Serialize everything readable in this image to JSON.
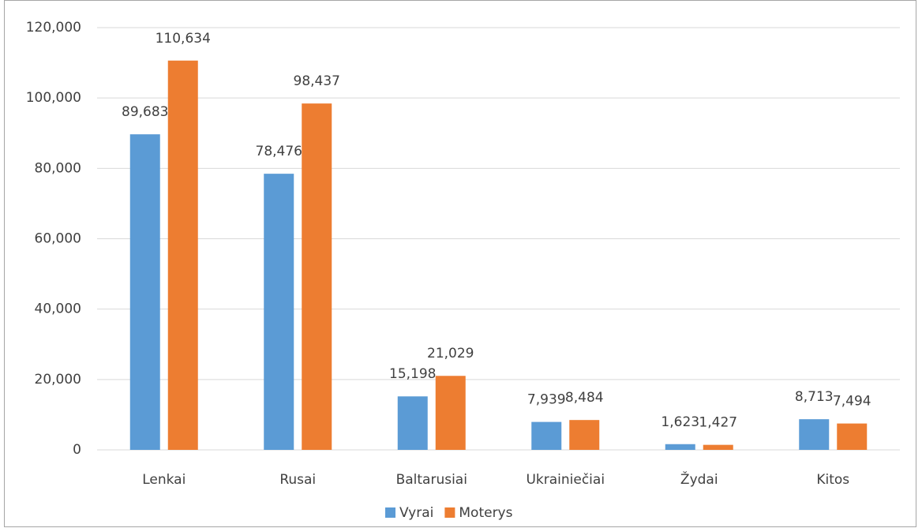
{
  "chart_data": {
    "type": "bar",
    "categories": [
      "Lenkai",
      "Rusai",
      "Baltarusiai",
      "Ukrainiečiai",
      "Žydai",
      "Kitos"
    ],
    "series": [
      {
        "name": "Vyrai",
        "color": "#5b9bd5",
        "values": [
          89683,
          78476,
          15198,
          7939,
          1623,
          8713
        ],
        "value_labels": [
          "89,683",
          "78,476",
          "15,198",
          "7,939",
          "1,623",
          "8,713"
        ]
      },
      {
        "name": "Moterys",
        "color": "#ed7d31",
        "values": [
          110634,
          98437,
          21029,
          8484,
          1427,
          7494
        ],
        "value_labels": [
          "110,634",
          "98,437",
          "21,029",
          "8,484",
          "1,427",
          "7,494"
        ]
      }
    ],
    "ylim": [
      0,
      120000
    ],
    "yticks": [
      0,
      {
        "value": 20000,
        "label": "20,000"
      },
      {
        "value": 40000,
        "label": "40,000"
      },
      {
        "value": 60000,
        "label": "60,000"
      },
      {
        "value": 80000,
        "label": "80,000"
      },
      {
        "value": 100000,
        "label": "100,000"
      },
      {
        "value": 120000,
        "label": "120,000"
      }
    ],
    "grid": true,
    "legend": "bottom"
  }
}
